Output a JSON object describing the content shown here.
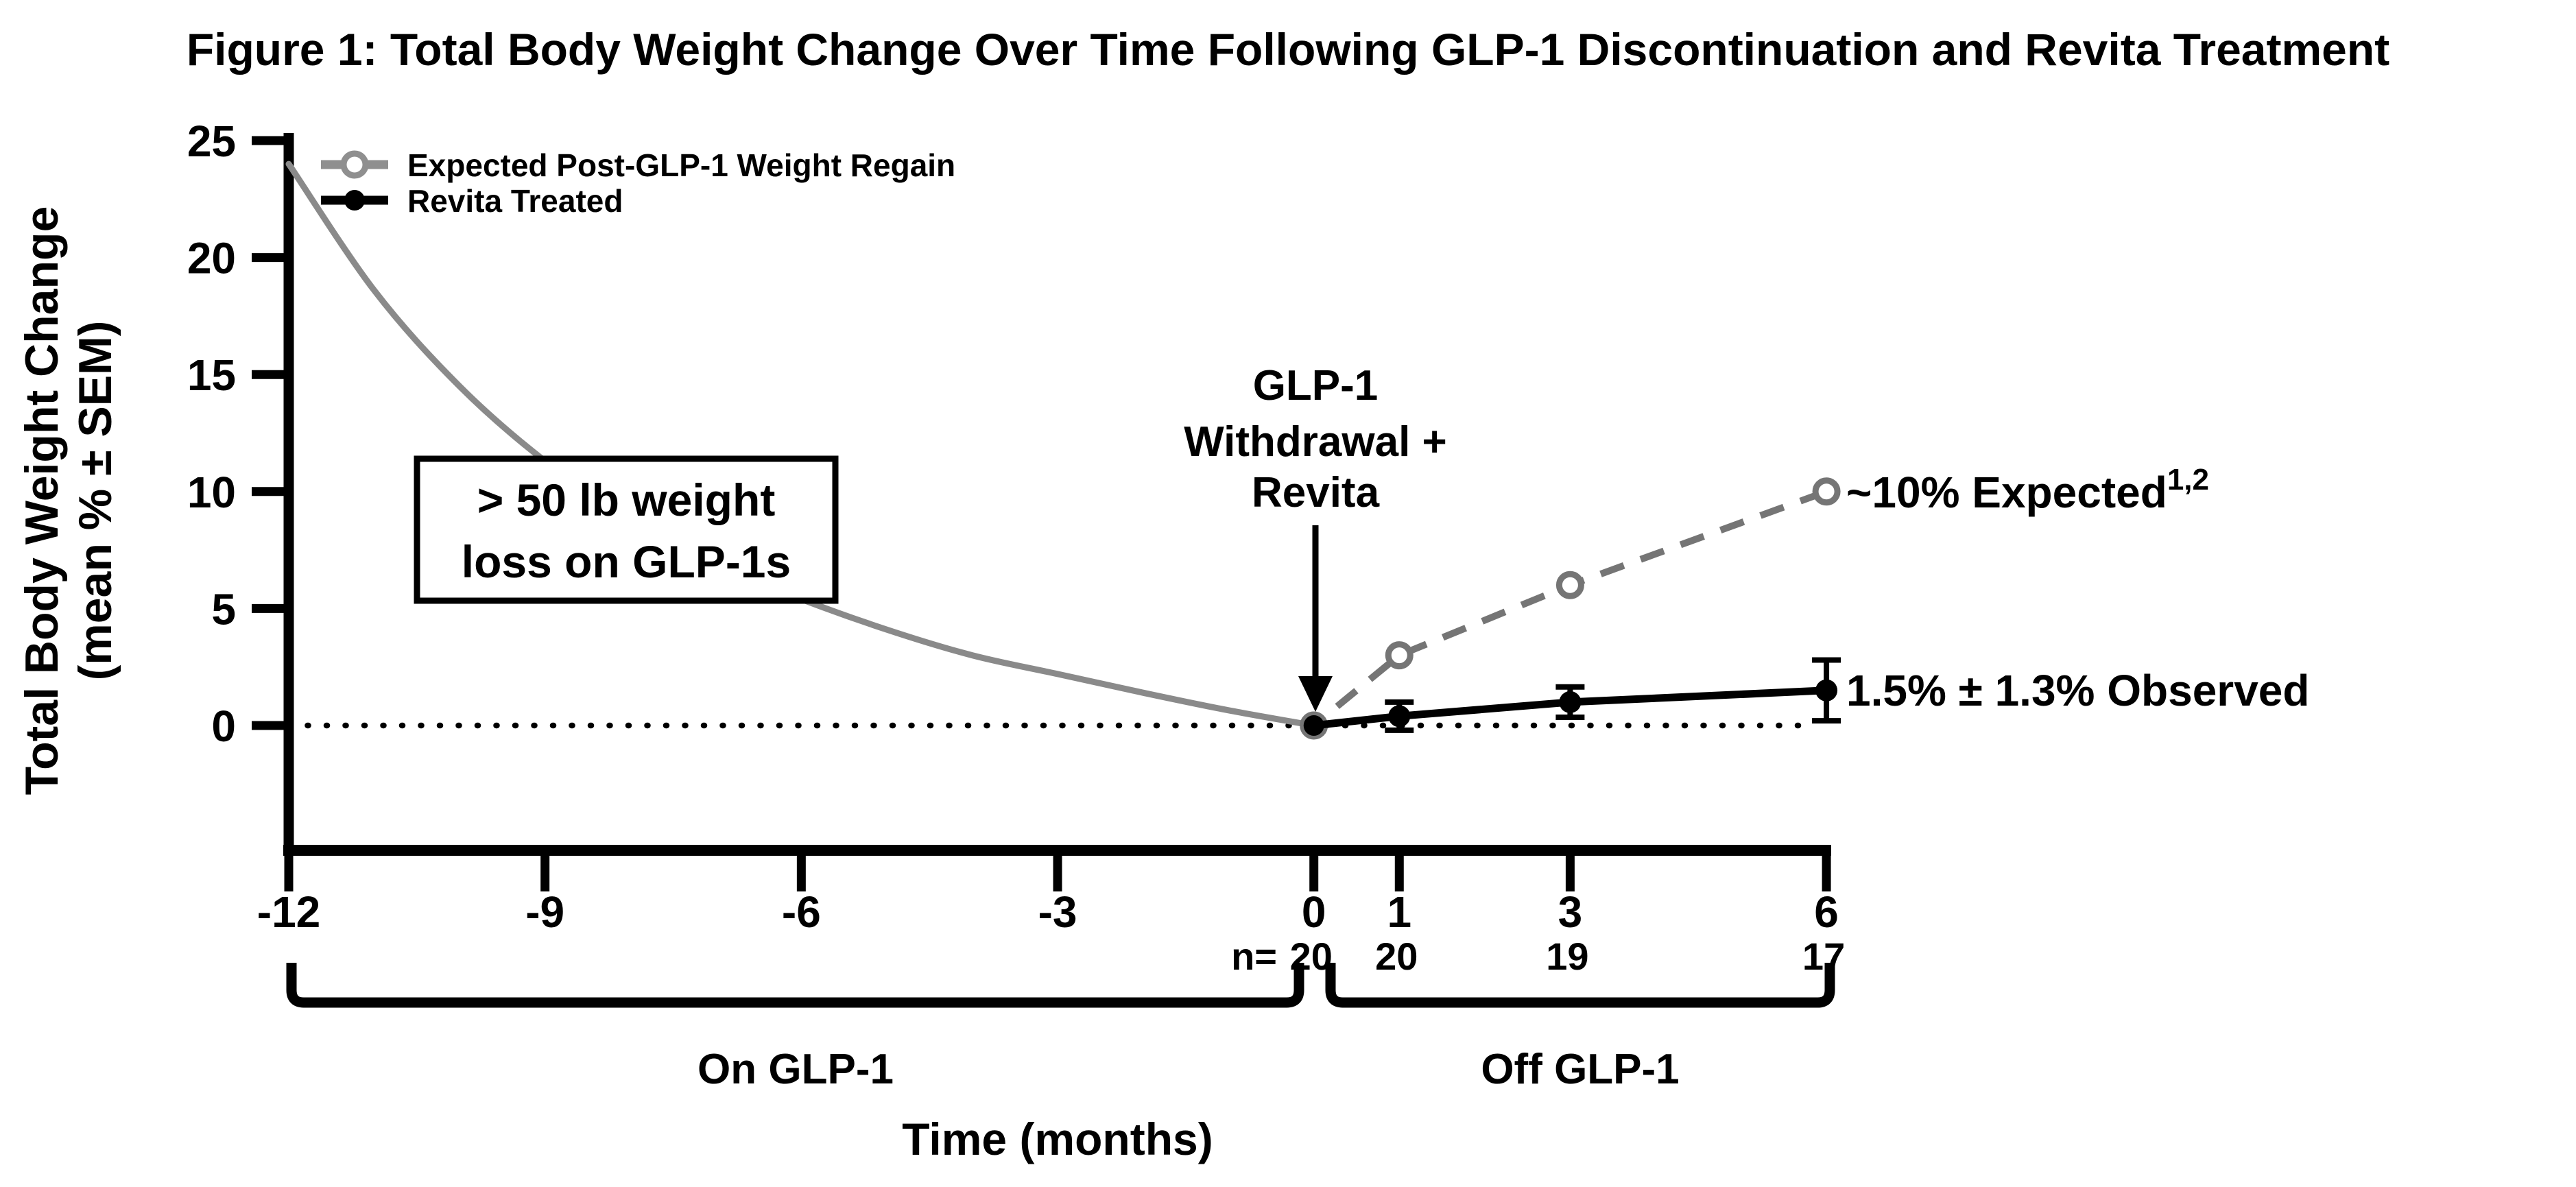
{
  "chart_data": {
    "type": "line",
    "title": "Figure 1: Total Body Weight Change Over Time Following GLP-1 Discontinuation and Revita Treatment",
    "xlabel": "Time (months)",
    "ylabel": "Total Body Weight Change",
    "ylabel_sub": "(mean % ± SEM)",
    "x_ticks": [
      -12,
      -9,
      -6,
      -3,
      0,
      1,
      3,
      6
    ],
    "y_ticks": [
      0,
      5,
      10,
      15,
      20,
      25
    ],
    "xlim": [
      -12,
      6.1
    ],
    "ylim": [
      -5.3,
      25
    ],
    "grid": false,
    "legend_position": "top-left",
    "colors": {
      "expected_gray": "#757575",
      "curve_gray": "#8a8a8a",
      "legend_gray": "#8f8f8f",
      "black": "#000000"
    },
    "legend": [
      {
        "label": "Expected Post-GLP-1 Weight Regain",
        "marker": "open-circle",
        "line": "dashed",
        "color": "#757575"
      },
      {
        "label": "Revita Treated",
        "marker": "filled-circle",
        "line": "solid",
        "color": "#000000"
      }
    ],
    "series": [
      {
        "name": "Expected Post-GLP-1 Weight Regain",
        "style": "dashed",
        "marker": "open-circle",
        "color": "#757575",
        "x": [
          0,
          1,
          3,
          6
        ],
        "y": [
          0,
          3,
          6,
          10
        ]
      },
      {
        "name": "Revita Treated",
        "style": "solid",
        "marker": "filled-circle",
        "color": "#000000",
        "x": [
          0,
          1,
          3,
          6
        ],
        "y": [
          0,
          0.4,
          1.0,
          1.5
        ],
        "sem": [
          0,
          0.6,
          0.65,
          1.3
        ]
      }
    ],
    "pre_treatment_curve": {
      "name": "On GLP-1 weight-loss trajectory",
      "color": "#8a8a8a",
      "x": [
        -12,
        -11,
        -10,
        -9,
        -8,
        -7,
        -6,
        -5,
        -4,
        -3,
        -2,
        -1,
        0
      ],
      "y": [
        24,
        18.6,
        14.5,
        11.3,
        8.8,
        6.9,
        5.4,
        4.1,
        3.0,
        2.2,
        1.4,
        0.65,
        0
      ]
    },
    "zero_line": {
      "y": 0,
      "style": "dotted",
      "x_start": -12,
      "x_end": 5.82
    },
    "n_row": {
      "label": "n=",
      "entries": [
        {
          "x": 0,
          "n": "20"
        },
        {
          "x": 1,
          "n": "20"
        },
        {
          "x": 3,
          "n": "19"
        },
        {
          "x": 6,
          "n": "17"
        }
      ]
    },
    "period_brackets": [
      {
        "label": "On GLP-1",
        "from": -12,
        "to": -0.18
      },
      {
        "label": "Off GLP-1",
        "from": 0.18,
        "to": 6.05
      }
    ],
    "annotations": {
      "weight_loss_box": {
        "line1": "> 50 lb weight",
        "line2": "loss on GLP-1s"
      },
      "withdrawal": {
        "line1": "GLP-1",
        "line2": "Withdrawal +",
        "line3": "Revita",
        "arrow_x": 0
      },
      "expected_label": {
        "text": "~10% Expected",
        "superscript": "1,2"
      },
      "observed_label": {
        "text": "1.5% ± 1.3% Observed"
      }
    }
  }
}
